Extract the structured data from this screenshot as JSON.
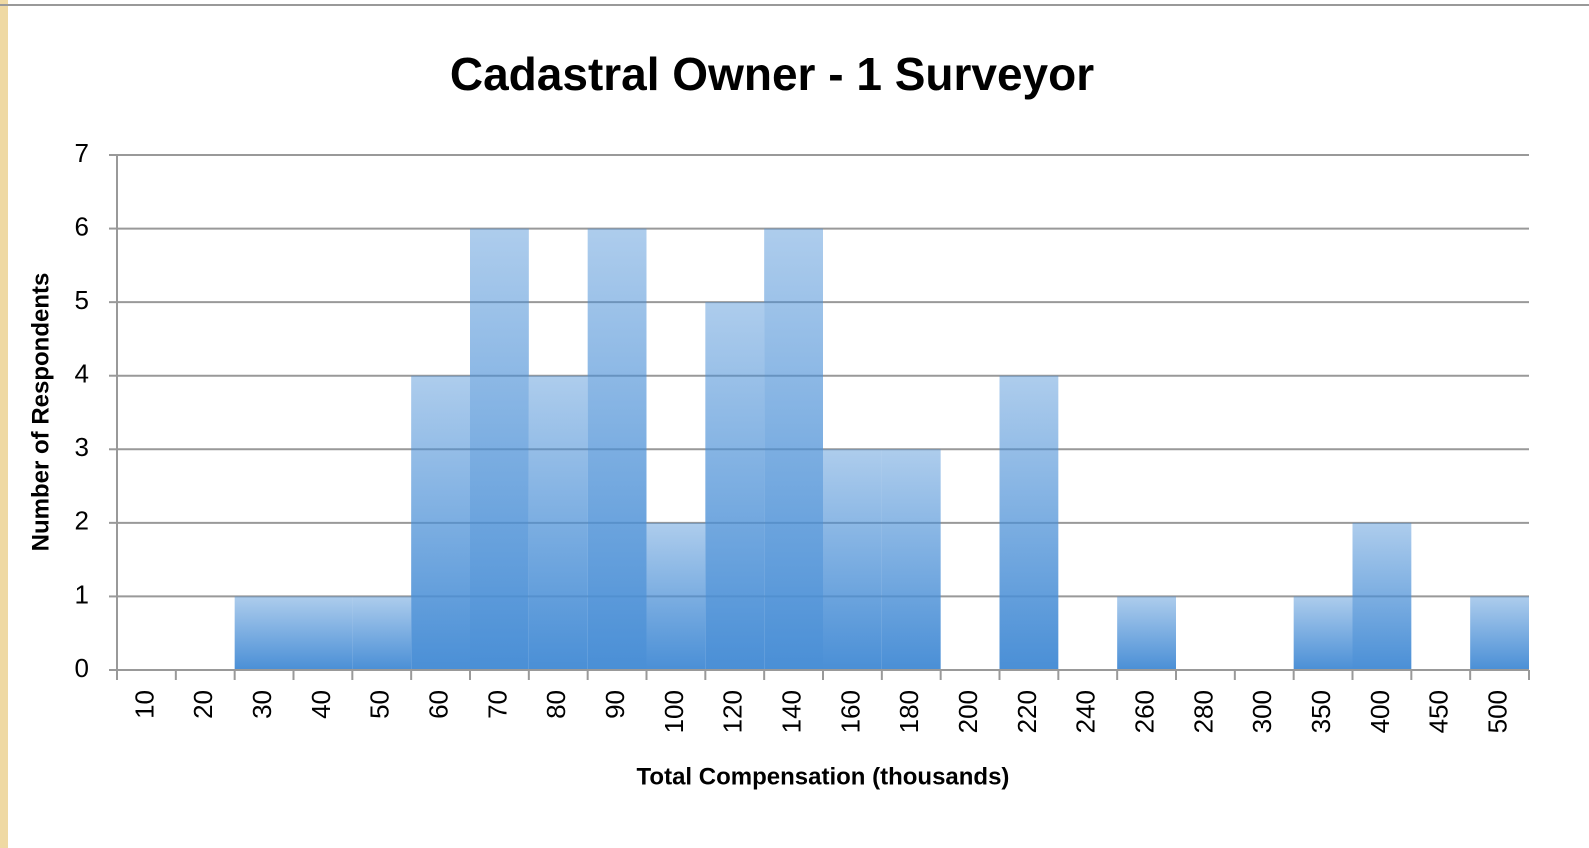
{
  "chart_data": {
    "type": "bar",
    "title": "Cadastral Owner - 1 Surveyor",
    "x_label": "Total Compensation (thousands)",
    "y_label": "Number of Respondents",
    "categories": [
      "10",
      "20",
      "30",
      "40",
      "50",
      "60",
      "70",
      "80",
      "90",
      "100",
      "120",
      "140",
      "160",
      "180",
      "200",
      "220",
      "240",
      "260",
      "280",
      "300",
      "350",
      "400",
      "450",
      "500"
    ],
    "values": [
      0,
      0,
      1,
      1,
      1,
      4,
      6,
      4,
      6,
      2,
      5,
      6,
      3,
      3,
      0,
      4,
      0,
      1,
      0,
      0,
      1,
      2,
      0,
      1
    ],
    "color": "#4a8fd6",
    "ylim": [
      0,
      7
    ],
    "yticks": [
      0,
      1,
      2,
      3,
      4,
      5,
      6,
      7
    ],
    "grid": true
  }
}
